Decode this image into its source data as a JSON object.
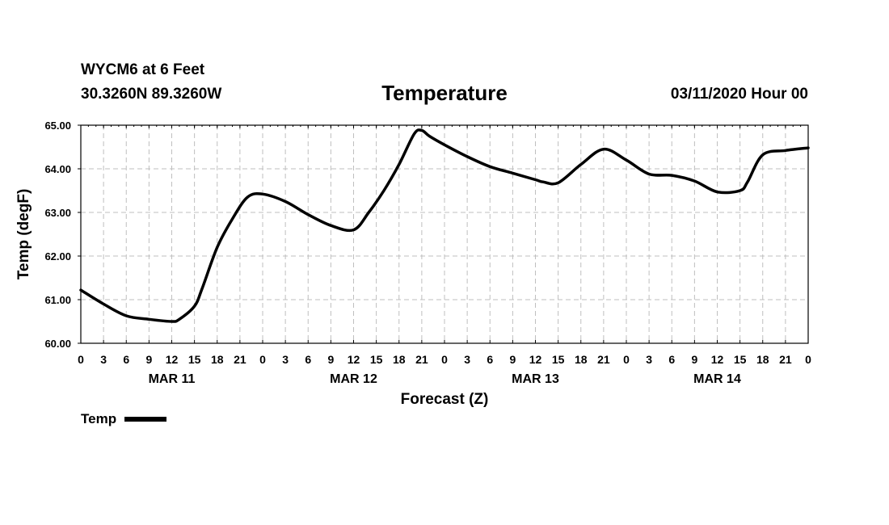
{
  "header": {
    "station": "WYCM6 at 6 Feet",
    "coords": "30.3260N 89.3260W",
    "datetime": "03/11/2020 Hour 00"
  },
  "chart_data": {
    "type": "line",
    "title": "Temperature",
    "xlabel": "Forecast (Z)",
    "ylabel": "Temp (degF)",
    "ylim": [
      60.0,
      65.0
    ],
    "xlim": [
      0,
      96
    ],
    "grid": true,
    "y_ticks": [
      "60.00",
      "61.00",
      "62.00",
      "63.00",
      "64.00",
      "65.00"
    ],
    "x_tick_labels": [
      "0",
      "3",
      "6",
      "9",
      "12",
      "15",
      "18",
      "21",
      "0",
      "3",
      "6",
      "9",
      "12",
      "15",
      "18",
      "21",
      "0",
      "3",
      "6",
      "9",
      "12",
      "15",
      "18",
      "21",
      "0",
      "3",
      "6",
      "9",
      "12",
      "15",
      "18",
      "21",
      "0"
    ],
    "day_labels": [
      {
        "label": "MAR 11",
        "hour": 12
      },
      {
        "label": "MAR 12",
        "hour": 36
      },
      {
        "label": "MAR 13",
        "hour": 60
      },
      {
        "label": "MAR 14",
        "hour": 84
      }
    ],
    "series": [
      {
        "name": "Temp",
        "color": "#000000",
        "x": [
          0,
          3,
          6,
          9,
          12,
          13,
          15,
          16,
          18,
          20,
          22,
          24,
          27,
          30,
          33,
          36,
          38,
          40,
          42,
          44,
          45,
          46,
          48,
          51,
          54,
          57,
          60,
          61,
          63,
          66,
          69,
          72,
          75,
          78,
          81,
          84,
          87,
          88,
          90,
          93,
          96
        ],
        "values": [
          61.22,
          60.9,
          60.63,
          60.55,
          60.5,
          60.55,
          60.85,
          61.25,
          62.2,
          62.85,
          63.35,
          63.42,
          63.25,
          62.95,
          62.7,
          62.6,
          63.0,
          63.5,
          64.1,
          64.8,
          64.88,
          64.75,
          64.55,
          64.28,
          64.05,
          63.9,
          63.75,
          63.7,
          63.68,
          64.1,
          64.45,
          64.2,
          63.88,
          63.85,
          63.72,
          63.47,
          63.5,
          63.7,
          64.32,
          64.42,
          64.48
        ]
      }
    ]
  },
  "legend": {
    "label": "Temp"
  }
}
